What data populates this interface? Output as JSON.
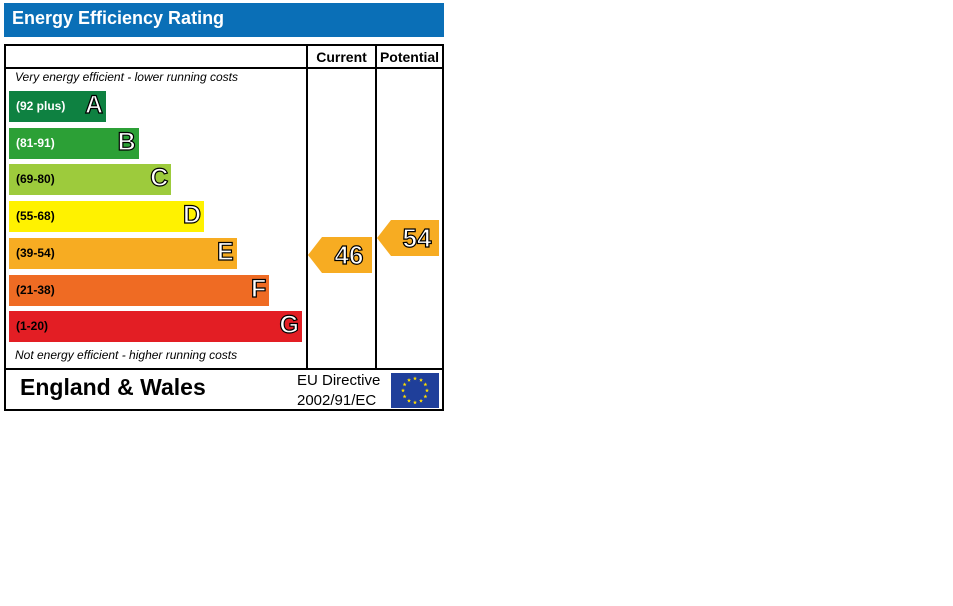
{
  "title": "Energy Efficiency Rating",
  "columns": {
    "current": "Current",
    "potential": "Potential"
  },
  "notes": {
    "top": "Very energy efficient - lower running costs",
    "bottom": "Not energy efficient - higher running costs"
  },
  "footer": {
    "region": "England & Wales",
    "directive_line1": "EU Directive",
    "directive_line2": "2002/91/EC",
    "flag_icon": "eu-flag-icon"
  },
  "chart_data": {
    "type": "bar",
    "title": "Energy Efficiency Rating",
    "categories": [
      "A",
      "B",
      "C",
      "D",
      "E",
      "F",
      "G"
    ],
    "bands": [
      {
        "letter": "A",
        "range": "(92 plus)",
        "min": 92,
        "max": 100,
        "color": "#0e8141",
        "text_color": "#ffffff"
      },
      {
        "letter": "B",
        "range": "(81-91)",
        "min": 81,
        "max": 91,
        "color": "#2ca036",
        "text_color": "#ffffff"
      },
      {
        "letter": "C",
        "range": "(69-80)",
        "min": 69,
        "max": 80,
        "color": "#9dcb3c",
        "text_color": "#000000"
      },
      {
        "letter": "D",
        "range": "(55-68)",
        "min": 55,
        "max": 68,
        "color": "#fff200",
        "text_color": "#000000"
      },
      {
        "letter": "E",
        "range": "(39-54)",
        "min": 39,
        "max": 54,
        "color": "#f7ac22",
        "text_color": "#000000"
      },
      {
        "letter": "F",
        "range": "(21-38)",
        "min": 21,
        "max": 38,
        "color": "#ef6b23",
        "text_color": "#000000"
      },
      {
        "letter": "G",
        "range": "(1-20)",
        "min": 1,
        "max": 20,
        "color": "#e31e24",
        "text_color": "#000000"
      }
    ],
    "current": {
      "value": 46,
      "band": "E",
      "color": "#f7ac22"
    },
    "potential": {
      "value": 54,
      "band": "E",
      "color": "#f7ac22"
    }
  }
}
